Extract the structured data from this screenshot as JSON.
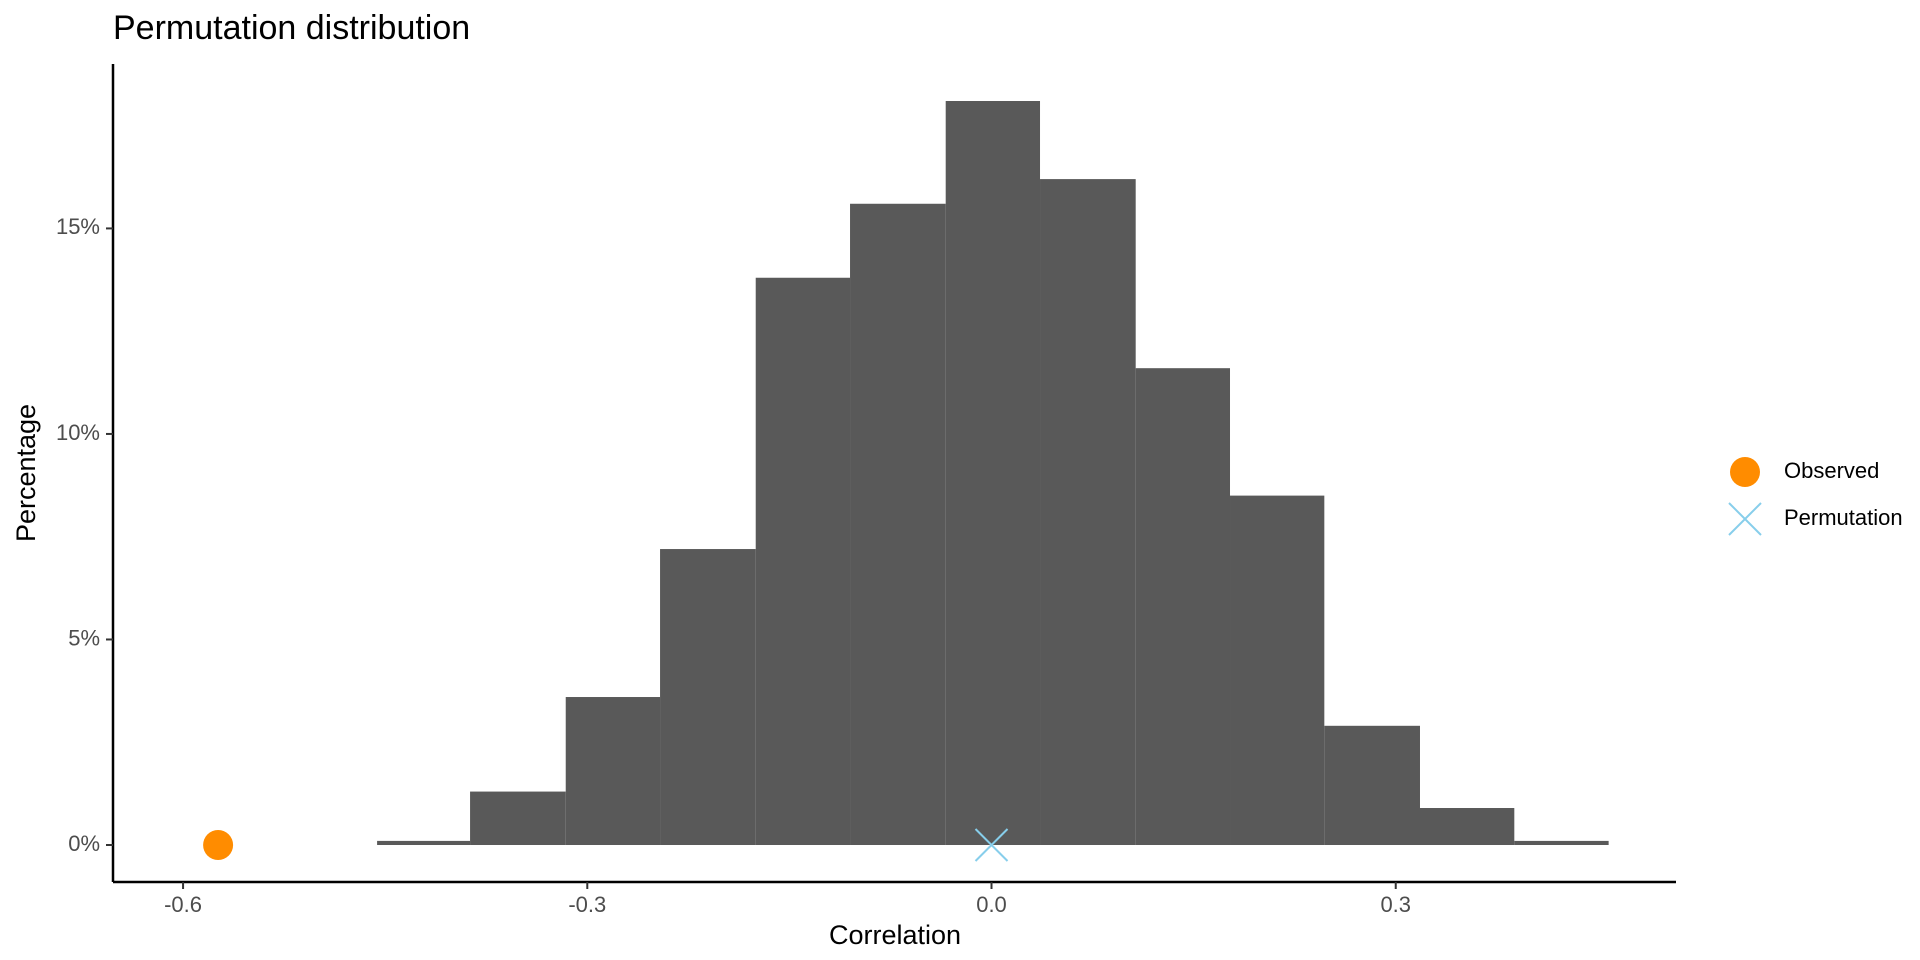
{
  "chart_data": {
    "type": "histogram",
    "title": "Permutation distribution",
    "x_label": "Correlation",
    "y_label": "Percentage",
    "bins": [
      -0.456,
      -0.387,
      -0.316,
      -0.246,
      -0.175,
      -0.105,
      -0.034,
      0.036,
      0.107,
      0.177,
      0.247,
      0.318,
      0.388,
      0.458
    ],
    "values": [
      0.1,
      1.3,
      3.6,
      7.2,
      13.8,
      15.6,
      18.1,
      16.2,
      11.6,
      8.5,
      2.9,
      0.9,
      0.1
    ],
    "color": "#595959",
    "points": [
      {
        "name": "Observed",
        "color": "#ff8c00",
        "shape": "circle",
        "x": -0.574,
        "y": 0
      },
      {
        "name": "Permutation",
        "color": "#87ceeb",
        "shape": "cross",
        "x": 0,
        "y": 0
      }
    ],
    "xlim": [
      -0.652,
      0.508
    ],
    "xticks": [
      -0.6,
      -0.3,
      {
        "value": 0,
        "label": "0.0"
      },
      0.3
    ],
    "ylim": [
      -0.9,
      19.0
    ],
    "yticks": [
      {
        "value": 0,
        "label": "0%"
      },
      {
        "value": 5,
        "label": "5%"
      },
      {
        "value": 10,
        "label": "10%"
      },
      {
        "value": 15,
        "label": "15%"
      }
    ],
    "grid": false,
    "legend": "right"
  }
}
